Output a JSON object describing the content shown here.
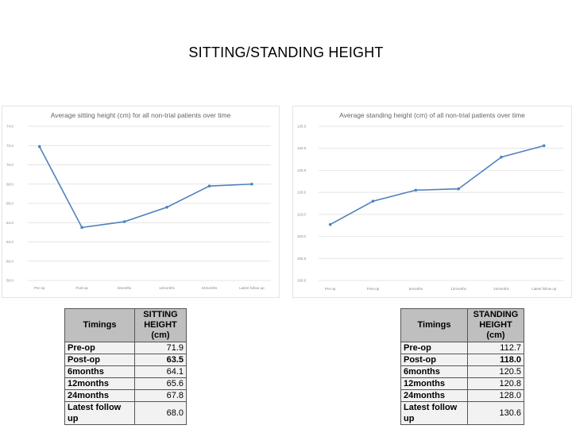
{
  "slide": {
    "title": "SITTING/STANDING HEIGHT"
  },
  "chart_data": [
    {
      "type": "line",
      "title": "Average sitting height (cm) for all non-trial patients over time",
      "categories": [
        "Pre-op",
        "Post-op",
        "6months",
        "12months",
        "24months",
        "Latest follow up"
      ],
      "series": [
        {
          "values": [
            71.9,
            63.5,
            64.1,
            65.6,
            67.8,
            68.0
          ]
        }
      ],
      "yticks": [
        "74.0",
        "72.0",
        "70.0",
        "68.0",
        "66.0",
        "64.0",
        "62.0",
        "60.0",
        "58.0"
      ],
      "ylim": [
        58,
        74
      ],
      "grid": true,
      "color": "#4f81bd"
    },
    {
      "type": "line",
      "title": "Average standing height (cm) of all non-trial patients over time",
      "categories": [
        "Pre-op",
        "Post-op",
        "6months",
        "12months",
        "24months",
        "Latest follow up"
      ],
      "series": [
        {
          "values": [
            112.7,
            118.0,
            120.5,
            120.8,
            128.0,
            130.6
          ]
        }
      ],
      "yticks": [
        "135.0",
        "130.0",
        "125.0",
        "120.0",
        "115.0",
        "110.0",
        "105.0",
        "100.0"
      ],
      "ylim": [
        100,
        135
      ],
      "grid": true,
      "color": "#4f81bd"
    }
  ],
  "tables": {
    "sitting": {
      "header_col1": "Timings",
      "header_col2_line1": "SITTING",
      "header_col2_line2": "HEIGHT",
      "header_col2_line3": "(cm)",
      "rows": [
        {
          "label": "Pre-op",
          "value": "71.9"
        },
        {
          "label": "Post-op",
          "value": "63.5"
        },
        {
          "label": "6months",
          "value": "64.1"
        },
        {
          "label": "12months",
          "value": "65.6"
        },
        {
          "label": "24months",
          "value": "67.8"
        },
        {
          "label": "Latest follow up",
          "value": "68.0"
        }
      ]
    },
    "standing": {
      "header_col1": "Timings",
      "header_col2_line1": "STANDING",
      "header_col2_line2": "HEIGHT",
      "header_col2_line3": "(cm)",
      "rows": [
        {
          "label": "Pre-op",
          "value": "112.7"
        },
        {
          "label": "Post-op",
          "value": "118.0"
        },
        {
          "label": "6months",
          "value": "120.5"
        },
        {
          "label": "12months",
          "value": "120.8"
        },
        {
          "label": "24months",
          "value": "128.0"
        },
        {
          "label": "Latest follow up",
          "value": "130.6"
        }
      ]
    }
  }
}
